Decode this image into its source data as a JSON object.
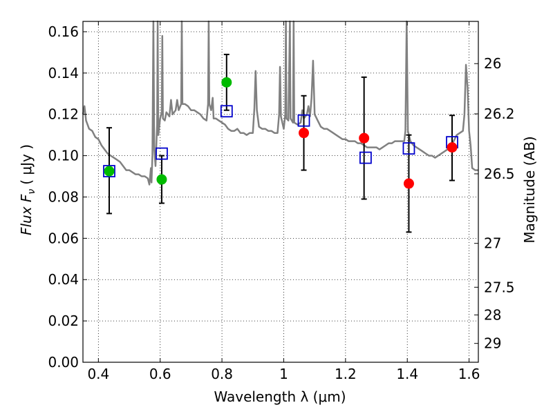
{
  "chart_data": {
    "type": "scatter",
    "xlabel": "Wavelength  λ (μm)",
    "ylabel": "Flux  F",
    "ylabel_sub": "ν",
    "ylabel_unit": "( μJy )",
    "y2label": "Magnitude (AB)",
    "xlim": [
      0.35,
      1.63
    ],
    "ylim": [
      0.0,
      0.165
    ],
    "grid": true,
    "x_ticks": [
      0.4,
      0.6,
      0.8,
      1.0,
      1.2,
      1.4,
      1.6
    ],
    "x_tick_labels": [
      "0.4",
      "0.6",
      "0.8",
      "1",
      "1.2",
      "1.4",
      "1.6"
    ],
    "y_ticks": [
      0.0,
      0.02,
      0.04,
      0.06,
      0.08,
      0.1,
      0.12,
      0.14,
      0.16
    ],
    "y_tick_labels": [
      "0.00",
      "0.02",
      "0.04",
      "0.06",
      "0.08",
      "0.10",
      "0.12",
      "0.14",
      "0.16"
    ],
    "mag_ticks": [
      26,
      26.2,
      26.5,
      27,
      27.5,
      28,
      29
    ],
    "mag_tick_labels": [
      "26",
      "26.2",
      "26.5",
      "27",
      "27.5",
      "28",
      "29"
    ],
    "model_spectrum": {
      "color": "#808080",
      "points": [
        [
          0.35,
          0.12
        ],
        [
          0.355,
          0.124
        ],
        [
          0.36,
          0.117
        ],
        [
          0.37,
          0.113
        ],
        [
          0.38,
          0.112
        ],
        [
          0.39,
          0.109
        ],
        [
          0.4,
          0.108
        ],
        [
          0.41,
          0.105
        ],
        [
          0.42,
          0.103
        ],
        [
          0.43,
          0.101
        ],
        [
          0.44,
          0.1
        ],
        [
          0.45,
          0.099
        ],
        [
          0.46,
          0.098
        ],
        [
          0.47,
          0.097
        ],
        [
          0.48,
          0.095
        ],
        [
          0.49,
          0.093
        ],
        [
          0.5,
          0.093
        ],
        [
          0.51,
          0.092
        ],
        [
          0.52,
          0.091
        ],
        [
          0.53,
          0.091
        ],
        [
          0.54,
          0.09
        ],
        [
          0.55,
          0.09
        ],
        [
          0.56,
          0.089
        ],
        [
          0.565,
          0.086
        ],
        [
          0.57,
          0.094
        ],
        [
          0.572,
          0.087
        ],
        [
          0.575,
          0.1
        ],
        [
          0.578,
          0.165
        ],
        [
          0.581,
          0.103
        ],
        [
          0.585,
          0.095
        ],
        [
          0.59,
          0.115
        ],
        [
          0.592,
          0.165
        ],
        [
          0.594,
          0.11
        ],
        [
          0.6,
          0.118
        ],
        [
          0.605,
          0.121
        ],
        [
          0.607,
          0.158
        ],
        [
          0.609,
          0.118
        ],
        [
          0.615,
          0.117
        ],
        [
          0.62,
          0.121
        ],
        [
          0.63,
          0.119
        ],
        [
          0.635,
          0.127
        ],
        [
          0.64,
          0.12
        ],
        [
          0.65,
          0.122
        ],
        [
          0.655,
          0.127
        ],
        [
          0.66,
          0.122
        ],
        [
          0.668,
          0.125
        ],
        [
          0.67,
          0.165
        ],
        [
          0.672,
          0.125
        ],
        [
          0.68,
          0.125
        ],
        [
          0.69,
          0.124
        ],
        [
          0.7,
          0.122
        ],
        [
          0.71,
          0.122
        ],
        [
          0.72,
          0.121
        ],
        [
          0.73,
          0.12
        ],
        [
          0.74,
          0.118
        ],
        [
          0.75,
          0.117
        ],
        [
          0.755,
          0.125
        ],
        [
          0.757,
          0.165
        ],
        [
          0.759,
          0.125
        ],
        [
          0.765,
          0.122
        ],
        [
          0.77,
          0.128
        ],
        [
          0.773,
          0.118
        ],
        [
          0.78,
          0.118
        ],
        [
          0.79,
          0.117
        ],
        [
          0.8,
          0.116
        ],
        [
          0.81,
          0.115
        ],
        [
          0.82,
          0.113
        ],
        [
          0.83,
          0.112
        ],
        [
          0.84,
          0.112
        ],
        [
          0.85,
          0.113
        ],
        [
          0.86,
          0.111
        ],
        [
          0.87,
          0.111
        ],
        [
          0.88,
          0.11
        ],
        [
          0.89,
          0.111
        ],
        [
          0.9,
          0.111
        ],
        [
          0.905,
          0.123
        ],
        [
          0.909,
          0.141
        ],
        [
          0.913,
          0.122
        ],
        [
          0.92,
          0.114
        ],
        [
          0.93,
          0.113
        ],
        [
          0.94,
          0.113
        ],
        [
          0.95,
          0.112
        ],
        [
          0.96,
          0.112
        ],
        [
          0.97,
          0.111
        ],
        [
          0.98,
          0.111
        ],
        [
          0.985,
          0.12
        ],
        [
          0.988,
          0.143
        ],
        [
          0.991,
          0.119
        ],
        [
          1.0,
          0.113
        ],
        [
          1.005,
          0.12
        ],
        [
          1.007,
          0.165
        ],
        [
          1.009,
          0.118
        ],
        [
          1.015,
          0.117
        ],
        [
          1.02,
          0.165
        ],
        [
          1.022,
          0.118
        ],
        [
          1.03,
          0.116
        ],
        [
          1.032,
          0.165
        ],
        [
          1.034,
          0.116
        ],
        [
          1.045,
          0.115
        ],
        [
          1.055,
          0.116
        ],
        [
          1.06,
          0.122
        ],
        [
          1.065,
          0.118
        ],
        [
          1.075,
          0.12
        ],
        [
          1.08,
          0.124
        ],
        [
          1.085,
          0.119
        ],
        [
          1.09,
          0.128
        ],
        [
          1.095,
          0.146
        ],
        [
          1.1,
          0.12
        ],
        [
          1.11,
          0.117
        ],
        [
          1.12,
          0.114
        ],
        [
          1.13,
          0.113
        ],
        [
          1.14,
          0.113
        ],
        [
          1.15,
          0.112
        ],
        [
          1.16,
          0.111
        ],
        [
          1.17,
          0.11
        ],
        [
          1.18,
          0.109
        ],
        [
          1.19,
          0.108
        ],
        [
          1.2,
          0.108
        ],
        [
          1.21,
          0.107
        ],
        [
          1.22,
          0.107
        ],
        [
          1.23,
          0.107
        ],
        [
          1.24,
          0.106
        ],
        [
          1.25,
          0.106
        ],
        [
          1.26,
          0.105
        ],
        [
          1.27,
          0.104
        ],
        [
          1.28,
          0.104
        ],
        [
          1.29,
          0.104
        ],
        [
          1.3,
          0.104
        ],
        [
          1.31,
          0.103
        ],
        [
          1.32,
          0.104
        ],
        [
          1.33,
          0.105
        ],
        [
          1.34,
          0.106
        ],
        [
          1.35,
          0.106
        ],
        [
          1.36,
          0.107
        ],
        [
          1.37,
          0.107
        ],
        [
          1.38,
          0.107
        ],
        [
          1.39,
          0.107
        ],
        [
          1.394,
          0.112
        ],
        [
          1.398,
          0.165
        ],
        [
          1.402,
          0.112
        ],
        [
          1.41,
          0.107
        ],
        [
          1.42,
          0.105
        ],
        [
          1.43,
          0.104
        ],
        [
          1.44,
          0.103
        ],
        [
          1.45,
          0.102
        ],
        [
          1.46,
          0.101
        ],
        [
          1.47,
          0.1
        ],
        [
          1.48,
          0.1
        ],
        [
          1.49,
          0.099
        ],
        [
          1.5,
          0.1
        ],
        [
          1.51,
          0.101
        ],
        [
          1.52,
          0.102
        ],
        [
          1.53,
          0.103
        ],
        [
          1.54,
          0.105
        ],
        [
          1.55,
          0.107
        ],
        [
          1.56,
          0.11
        ],
        [
          1.57,
          0.111
        ],
        [
          1.58,
          0.112
        ],
        [
          1.585,
          0.12
        ],
        [
          1.59,
          0.144
        ],
        [
          1.595,
          0.133
        ],
        [
          1.6,
          0.112
        ],
        [
          1.605,
          0.105
        ],
        [
          1.61,
          0.094
        ],
        [
          1.62,
          0.093
        ],
        [
          1.63,
          0.093
        ]
      ]
    },
    "series": [
      {
        "marker": "square-open",
        "color": "#0000cc",
        "points": [
          [
            0.435,
            0.0925
          ],
          [
            0.605,
            0.101
          ],
          [
            0.815,
            0.1215
          ],
          [
            1.065,
            0.117
          ],
          [
            1.265,
            0.099
          ],
          [
            1.405,
            0.1035
          ],
          [
            1.545,
            0.1065
          ]
        ]
      },
      {
        "marker": "circle",
        "color": "#00bb00",
        "points": [
          [
            0.435,
            0.0925
          ],
          [
            0.605,
            0.0885
          ],
          [
            0.815,
            0.1355
          ]
        ]
      },
      {
        "marker": "circle",
        "color": "#ff0000",
        "points": [
          [
            1.065,
            0.111
          ],
          [
            1.26,
            0.1085
          ],
          [
            1.405,
            0.0865
          ],
          [
            1.545,
            0.104
          ]
        ]
      }
    ],
    "error_bars": [
      {
        "x": 0.435,
        "low": 0.072,
        "high": 0.1135
      },
      {
        "x": 0.605,
        "low": 0.077,
        "high": 0.1
      },
      {
        "x": 0.815,
        "low": 0.122,
        "high": 0.149
      },
      {
        "x": 1.065,
        "low": 0.093,
        "high": 0.129
      },
      {
        "x": 1.26,
        "low": 0.079,
        "high": 0.138
      },
      {
        "x": 1.405,
        "low": 0.063,
        "high": 0.11
      },
      {
        "x": 1.545,
        "low": 0.088,
        "high": 0.1195
      }
    ]
  }
}
